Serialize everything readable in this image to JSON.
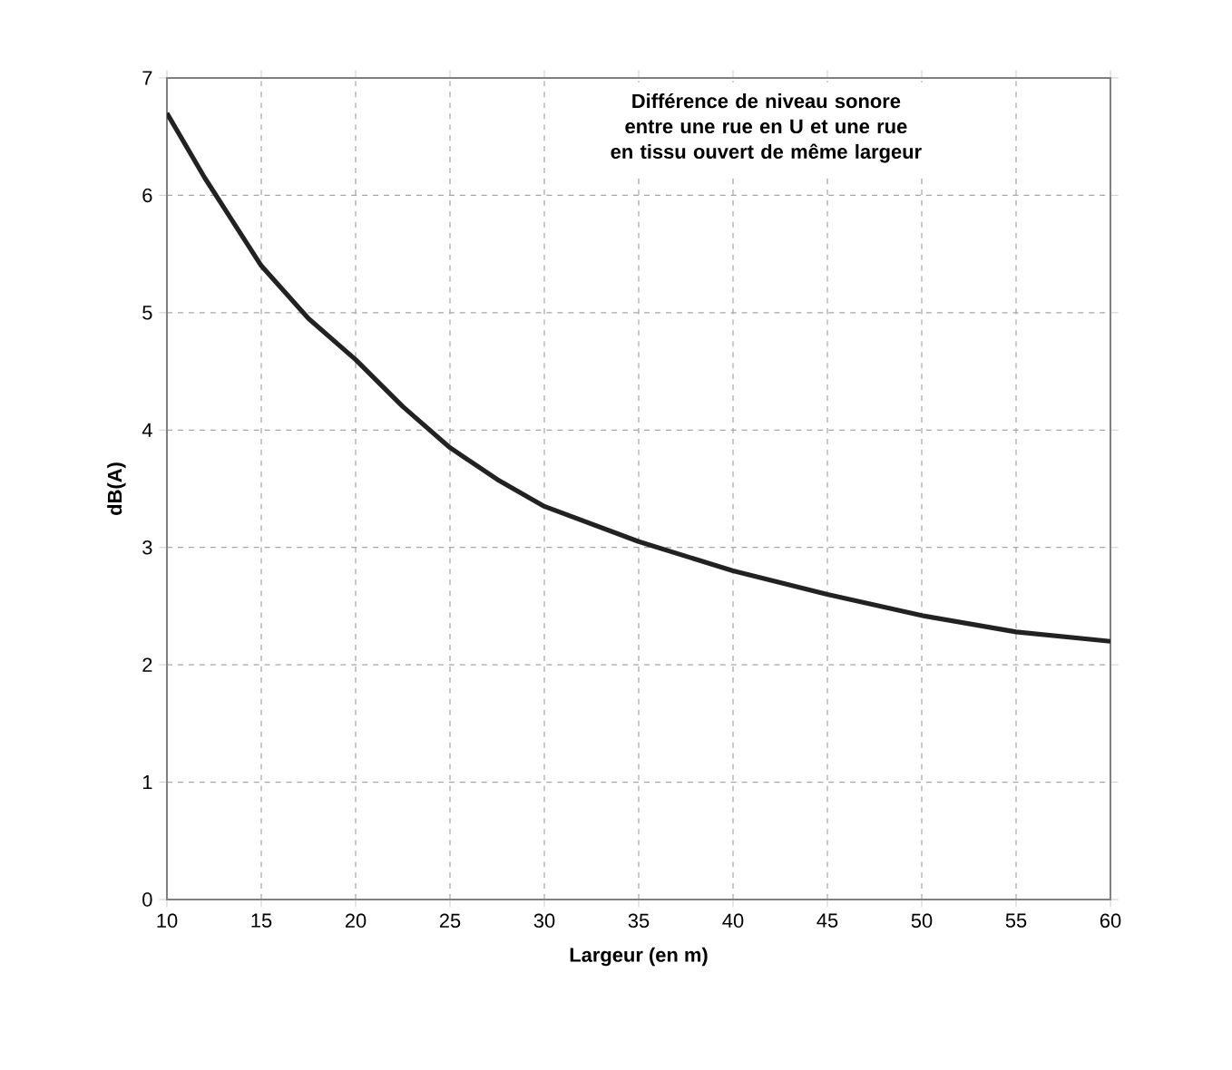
{
  "chart_data": {
    "type": "line",
    "title": "Différence de niveau sonore entre une rue en U et une rue en tissu ouvert de même largeur",
    "xlabel": "Largeur (en m)",
    "ylabel": "dB(A)",
    "x": [
      10,
      12,
      15,
      17.5,
      20,
      22.5,
      25,
      27.5,
      30,
      35,
      40,
      45,
      50,
      55,
      60
    ],
    "series": [
      {
        "color": "#222222",
        "values": [
          6.7,
          6.15,
          5.4,
          4.95,
          4.6,
          4.2,
          3.85,
          3.58,
          3.35,
          3.05,
          2.8,
          2.6,
          2.42,
          2.28,
          2.2
        ]
      }
    ],
    "xlim": [
      10,
      60
    ],
    "ylim": [
      0,
      7
    ],
    "xticks": [
      10,
      15,
      20,
      25,
      30,
      35,
      40,
      45,
      50,
      55,
      60
    ],
    "yticks": [
      0,
      1,
      2,
      3,
      4,
      5,
      6,
      7
    ],
    "grid": true,
    "marker": "none",
    "line_style": "solid"
  }
}
